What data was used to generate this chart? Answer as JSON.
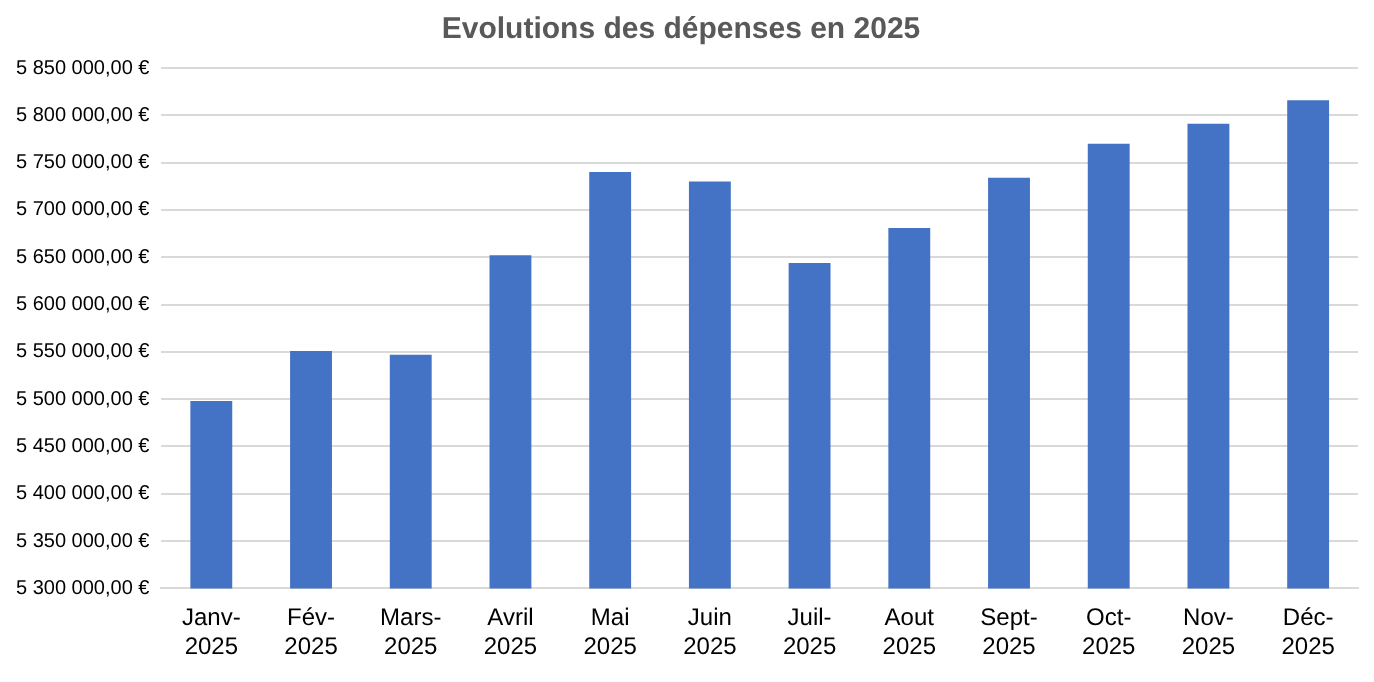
{
  "chart_data": {
    "type": "bar",
    "title": "Evolutions des dépenses en 2025",
    "categories": [
      "Janv-2025",
      "Fév-2025",
      "Mars-2025",
      "Avril 2025",
      "Mai 2025",
      "Juin 2025",
      "Juil-2025",
      "Aout 2025",
      "Sept-2025",
      "Oct-2025",
      "Nov-2025",
      "Déc-2025"
    ],
    "values": [
      5498000,
      5551000,
      5547000,
      5652000,
      5740000,
      5730000,
      5644000,
      5681000,
      5734000,
      5770000,
      5791000,
      5816000
    ],
    "color": "#4472c4",
    "ylim": [
      5300000,
      5850000
    ],
    "yticks": [
      {
        "value": 5300000,
        "label": "5 300 000,00 €"
      },
      {
        "value": 5350000,
        "label": "5 350 000,00 €"
      },
      {
        "value": 5400000,
        "label": "5 400 000,00 €"
      },
      {
        "value": 5450000,
        "label": "5 450 000,00 €"
      },
      {
        "value": 5500000,
        "label": "5 500 000,00 €"
      },
      {
        "value": 5550000,
        "label": "5 550 000,00 €"
      },
      {
        "value": 5600000,
        "label": "5 600 000,00 €"
      },
      {
        "value": 5650000,
        "label": "5 650 000,00 €"
      },
      {
        "value": 5700000,
        "label": "5 700 000,00 €"
      },
      {
        "value": 5750000,
        "label": "5 750 000,00 €"
      },
      {
        "value": 5800000,
        "label": "5 800 000,00 €"
      },
      {
        "value": 5850000,
        "label": "5 850 000,00 €"
      }
    ],
    "grid": "y"
  }
}
